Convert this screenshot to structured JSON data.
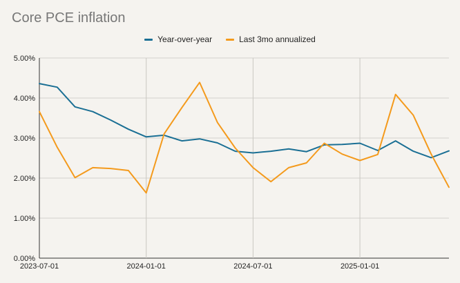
{
  "chart_data": {
    "type": "line",
    "title": "Core PCE inflation",
    "xlabel": "",
    "ylabel": "",
    "x": [
      "2023-07",
      "2023-08",
      "2023-09",
      "2023-10",
      "2023-11",
      "2023-12",
      "2024-01",
      "2024-02",
      "2024-03",
      "2024-04",
      "2024-05",
      "2024-06",
      "2024-07",
      "2024-08",
      "2024-09",
      "2024-10",
      "2024-11",
      "2024-12",
      "2025-01",
      "2025-02",
      "2025-03",
      "2025-04",
      "2025-05",
      "2025-06"
    ],
    "x_ticks": [
      "2023-07-01",
      "2024-01-01",
      "2024-07-01",
      "2025-01-01"
    ],
    "y_ticks": [
      "0.00%",
      "1.00%",
      "2.00%",
      "3.00%",
      "4.00%",
      "5.00%"
    ],
    "ylim": [
      0,
      5
    ],
    "grid": "vertical",
    "legend_position": "top",
    "series": [
      {
        "name": "Year-over-year",
        "color": "#1a6f94",
        "values": [
          4.36,
          4.27,
          3.78,
          3.66,
          3.45,
          3.22,
          3.03,
          3.07,
          2.93,
          2.98,
          2.88,
          2.67,
          2.63,
          2.67,
          2.73,
          2.66,
          2.83,
          2.84,
          2.87,
          2.69,
          2.93,
          2.67,
          2.51,
          2.68
        ]
      },
      {
        "name": "Last 3mo annualized",
        "color": "#f49a1c",
        "values": [
          3.66,
          2.77,
          2.01,
          2.26,
          2.24,
          2.19,
          1.63,
          3.1,
          3.76,
          4.39,
          3.39,
          2.75,
          2.26,
          1.91,
          2.26,
          2.38,
          2.87,
          2.6,
          2.44,
          2.59,
          4.09,
          3.57,
          2.6,
          1.77
        ]
      }
    ]
  }
}
